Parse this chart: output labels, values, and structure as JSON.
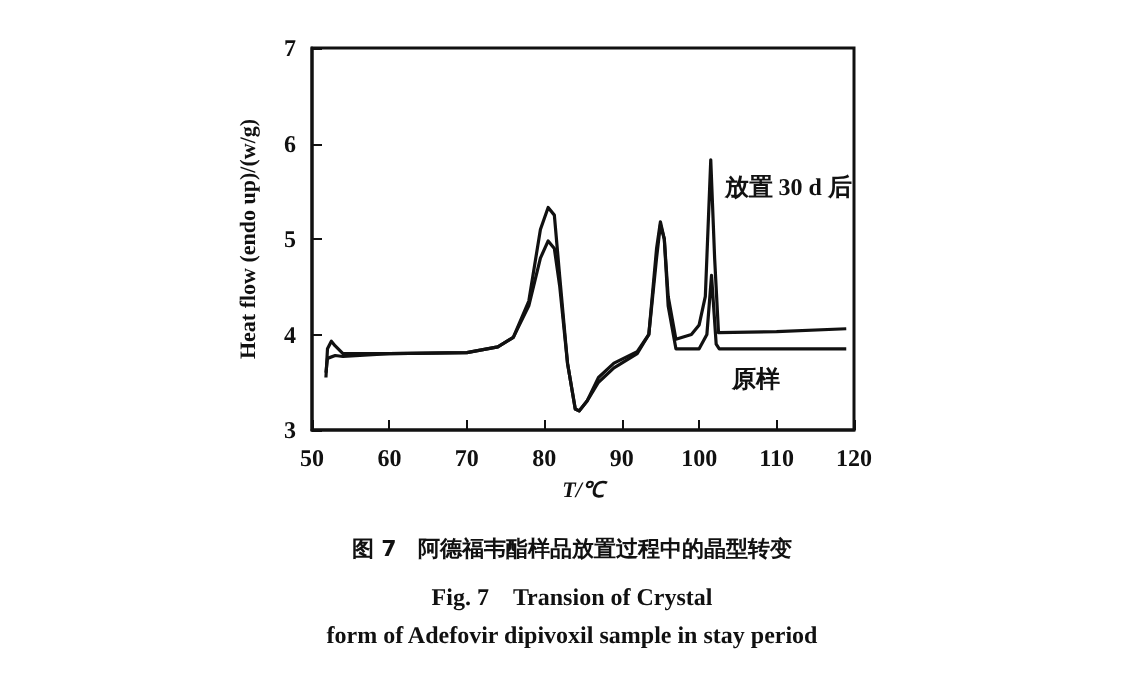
{
  "chart_data": {
    "type": "line",
    "xlabel": "T/℃",
    "ylabel": "Heat flow (endo up)/(w/g)",
    "title": "图 7　阿德福韦酯样品放置过程中的晶型转变",
    "subtitle": "Fig. 7　Transion of Crystal\nform of Adefovir dipivoxil sample in stay period",
    "xlim": [
      50,
      120
    ],
    "xticks": [
      50,
      60,
      70,
      80,
      90,
      100,
      110,
      120
    ],
    "ylim": [
      3,
      7
    ],
    "yticks": [
      3,
      4,
      5,
      6,
      7
    ],
    "grid": false,
    "legend": false,
    "marker": "none",
    "line_style": "solid",
    "series": [
      {
        "name": "放置 30 d 后",
        "color": "#111111",
        "x": [
          51.8,
          52,
          52.5,
          53,
          54,
          60,
          70,
          74,
          76,
          78,
          79.5,
          80.5,
          81.3,
          82,
          83,
          84,
          84.5,
          85.5,
          87,
          89,
          92,
          93.5,
          94.5,
          95,
          95.5,
          96,
          97,
          99,
          100,
          100.8,
          101.5,
          102,
          102.5,
          110,
          119
        ],
        "values": [
          3.55,
          3.85,
          3.93,
          3.88,
          3.8,
          3.8,
          3.81,
          3.87,
          3.97,
          4.3,
          4.8,
          4.98,
          4.9,
          4.5,
          3.7,
          3.22,
          3.2,
          3.3,
          3.5,
          3.65,
          3.8,
          4.0,
          4.8,
          5.15,
          5.0,
          4.4,
          3.95,
          4.0,
          4.1,
          4.4,
          5.83,
          4.8,
          4.02,
          4.03,
          4.06
        ]
      },
      {
        "name": "原样",
        "color": "#111111",
        "x": [
          51.8,
          52,
          53,
          54,
          60,
          70,
          74,
          76,
          78,
          79.5,
          80.5,
          81.3,
          82,
          83,
          84,
          84.5,
          85.5,
          87,
          89,
          92,
          93.5,
          94.5,
          95,
          95.5,
          96,
          97,
          100,
          101,
          101.6,
          102.2,
          102.6,
          110,
          119
        ],
        "values": [
          3.6,
          3.75,
          3.78,
          3.77,
          3.8,
          3.81,
          3.87,
          3.97,
          4.35,
          5.1,
          5.33,
          5.25,
          4.6,
          3.7,
          3.22,
          3.2,
          3.3,
          3.55,
          3.7,
          3.82,
          4.0,
          4.9,
          5.18,
          5.0,
          4.3,
          3.85,
          3.85,
          4.0,
          4.62,
          3.9,
          3.85,
          3.85,
          3.85
        ]
      }
    ]
  }
}
